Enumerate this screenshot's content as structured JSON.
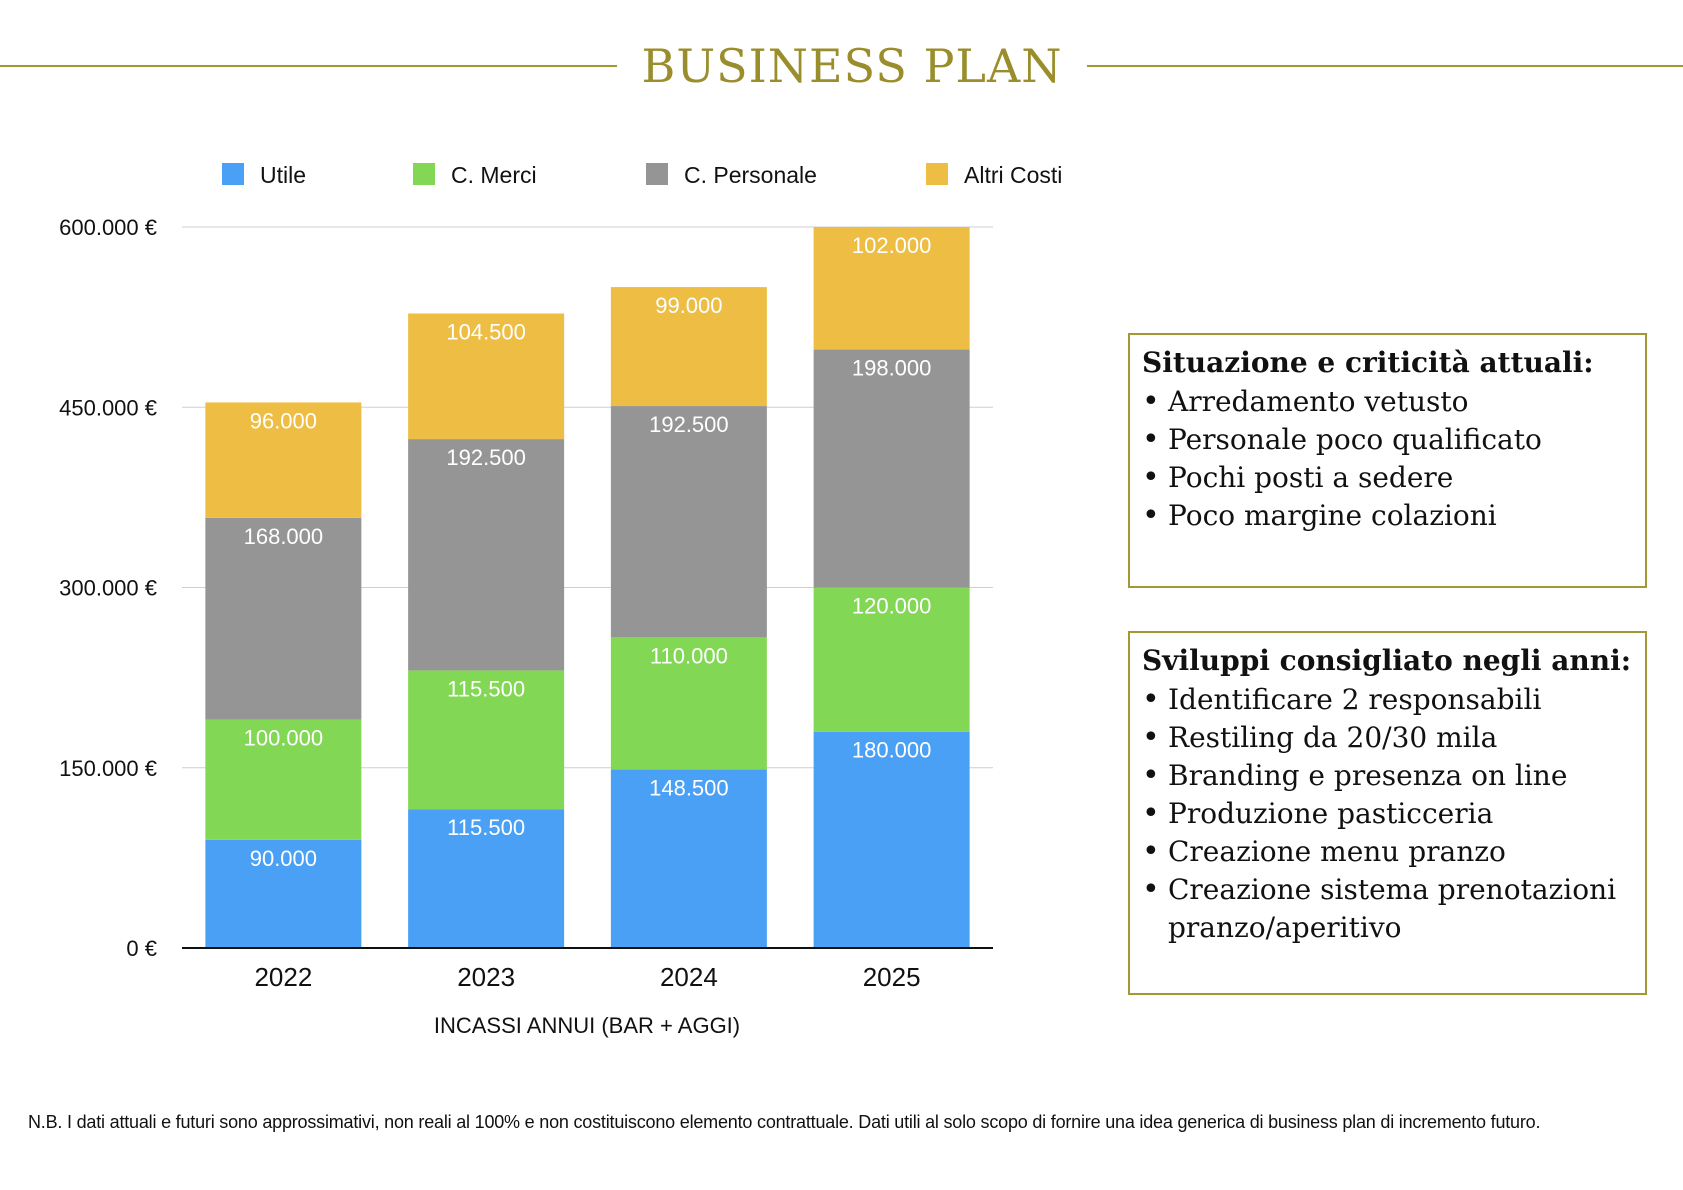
{
  "header": {
    "title": "BUSINESS PLAN"
  },
  "chart_data": {
    "type": "bar",
    "stacked": true,
    "title": "",
    "xlabel": "INCASSI ANNUI (BAR + AGGI)",
    "ylabel": "",
    "categories": [
      "2022",
      "2023",
      "2024",
      "2025"
    ],
    "ylim": [
      0,
      600000
    ],
    "yticks": [
      {
        "value": 0,
        "label": "0 €"
      },
      {
        "value": 150000,
        "label": "150.000 €"
      },
      {
        "value": 300000,
        "label": "300.000 €"
      },
      {
        "value": 450000,
        "label": "450.000 €"
      },
      {
        "value": 600000,
        "label": "600.000 €"
      }
    ],
    "grid": true,
    "legend": "top",
    "series": [
      {
        "name": "Utile",
        "color": "#4aa0f5",
        "values": [
          90000,
          115500,
          148500,
          180000
        ],
        "labels": [
          "90.000",
          "115.500",
          "148.500",
          "180.000"
        ]
      },
      {
        "name": "C. Merci",
        "color": "#82d755",
        "values": [
          100000,
          115500,
          110000,
          120000
        ],
        "labels": [
          "100.000",
          "115.500",
          "110.000",
          "120.000"
        ]
      },
      {
        "name": "C. Personale",
        "color": "#959595",
        "values": [
          168000,
          192500,
          192500,
          198000
        ],
        "labels": [
          "168.000",
          "192.500",
          "192.500",
          "198.000"
        ]
      },
      {
        "name": "Altri Costi",
        "color": "#eebd43",
        "values": [
          96000,
          104500,
          99000,
          102000
        ],
        "labels": [
          "96.000",
          "104.500",
          "99.000",
          "102.000"
        ]
      }
    ]
  },
  "situation": {
    "title": "Situazione e criticità attuali:",
    "items": [
      "Arredamento vetusto",
      "Personale poco qualificato",
      "Pochi posti a sedere",
      "Poco margine colazioni"
    ]
  },
  "developments": {
    "title": "Sviluppi consigliato negli anni:",
    "items": [
      "Identificare 2 responsabili",
      "Restiling da 20/30 mila",
      "Branding e presenza on line",
      "Produzione pasticceria",
      "Creazione menu pranzo",
      "Creazione sistema prenotazioni pranzo/aperitivo"
    ]
  },
  "footer": {
    "note": "N.B. I dati attuali e futuri sono approssimativi, non reali al 100% e  non costituiscono elemento contrattuale. Dati utili al solo scopo di fornire una idea generica di business plan di incremento futuro."
  }
}
